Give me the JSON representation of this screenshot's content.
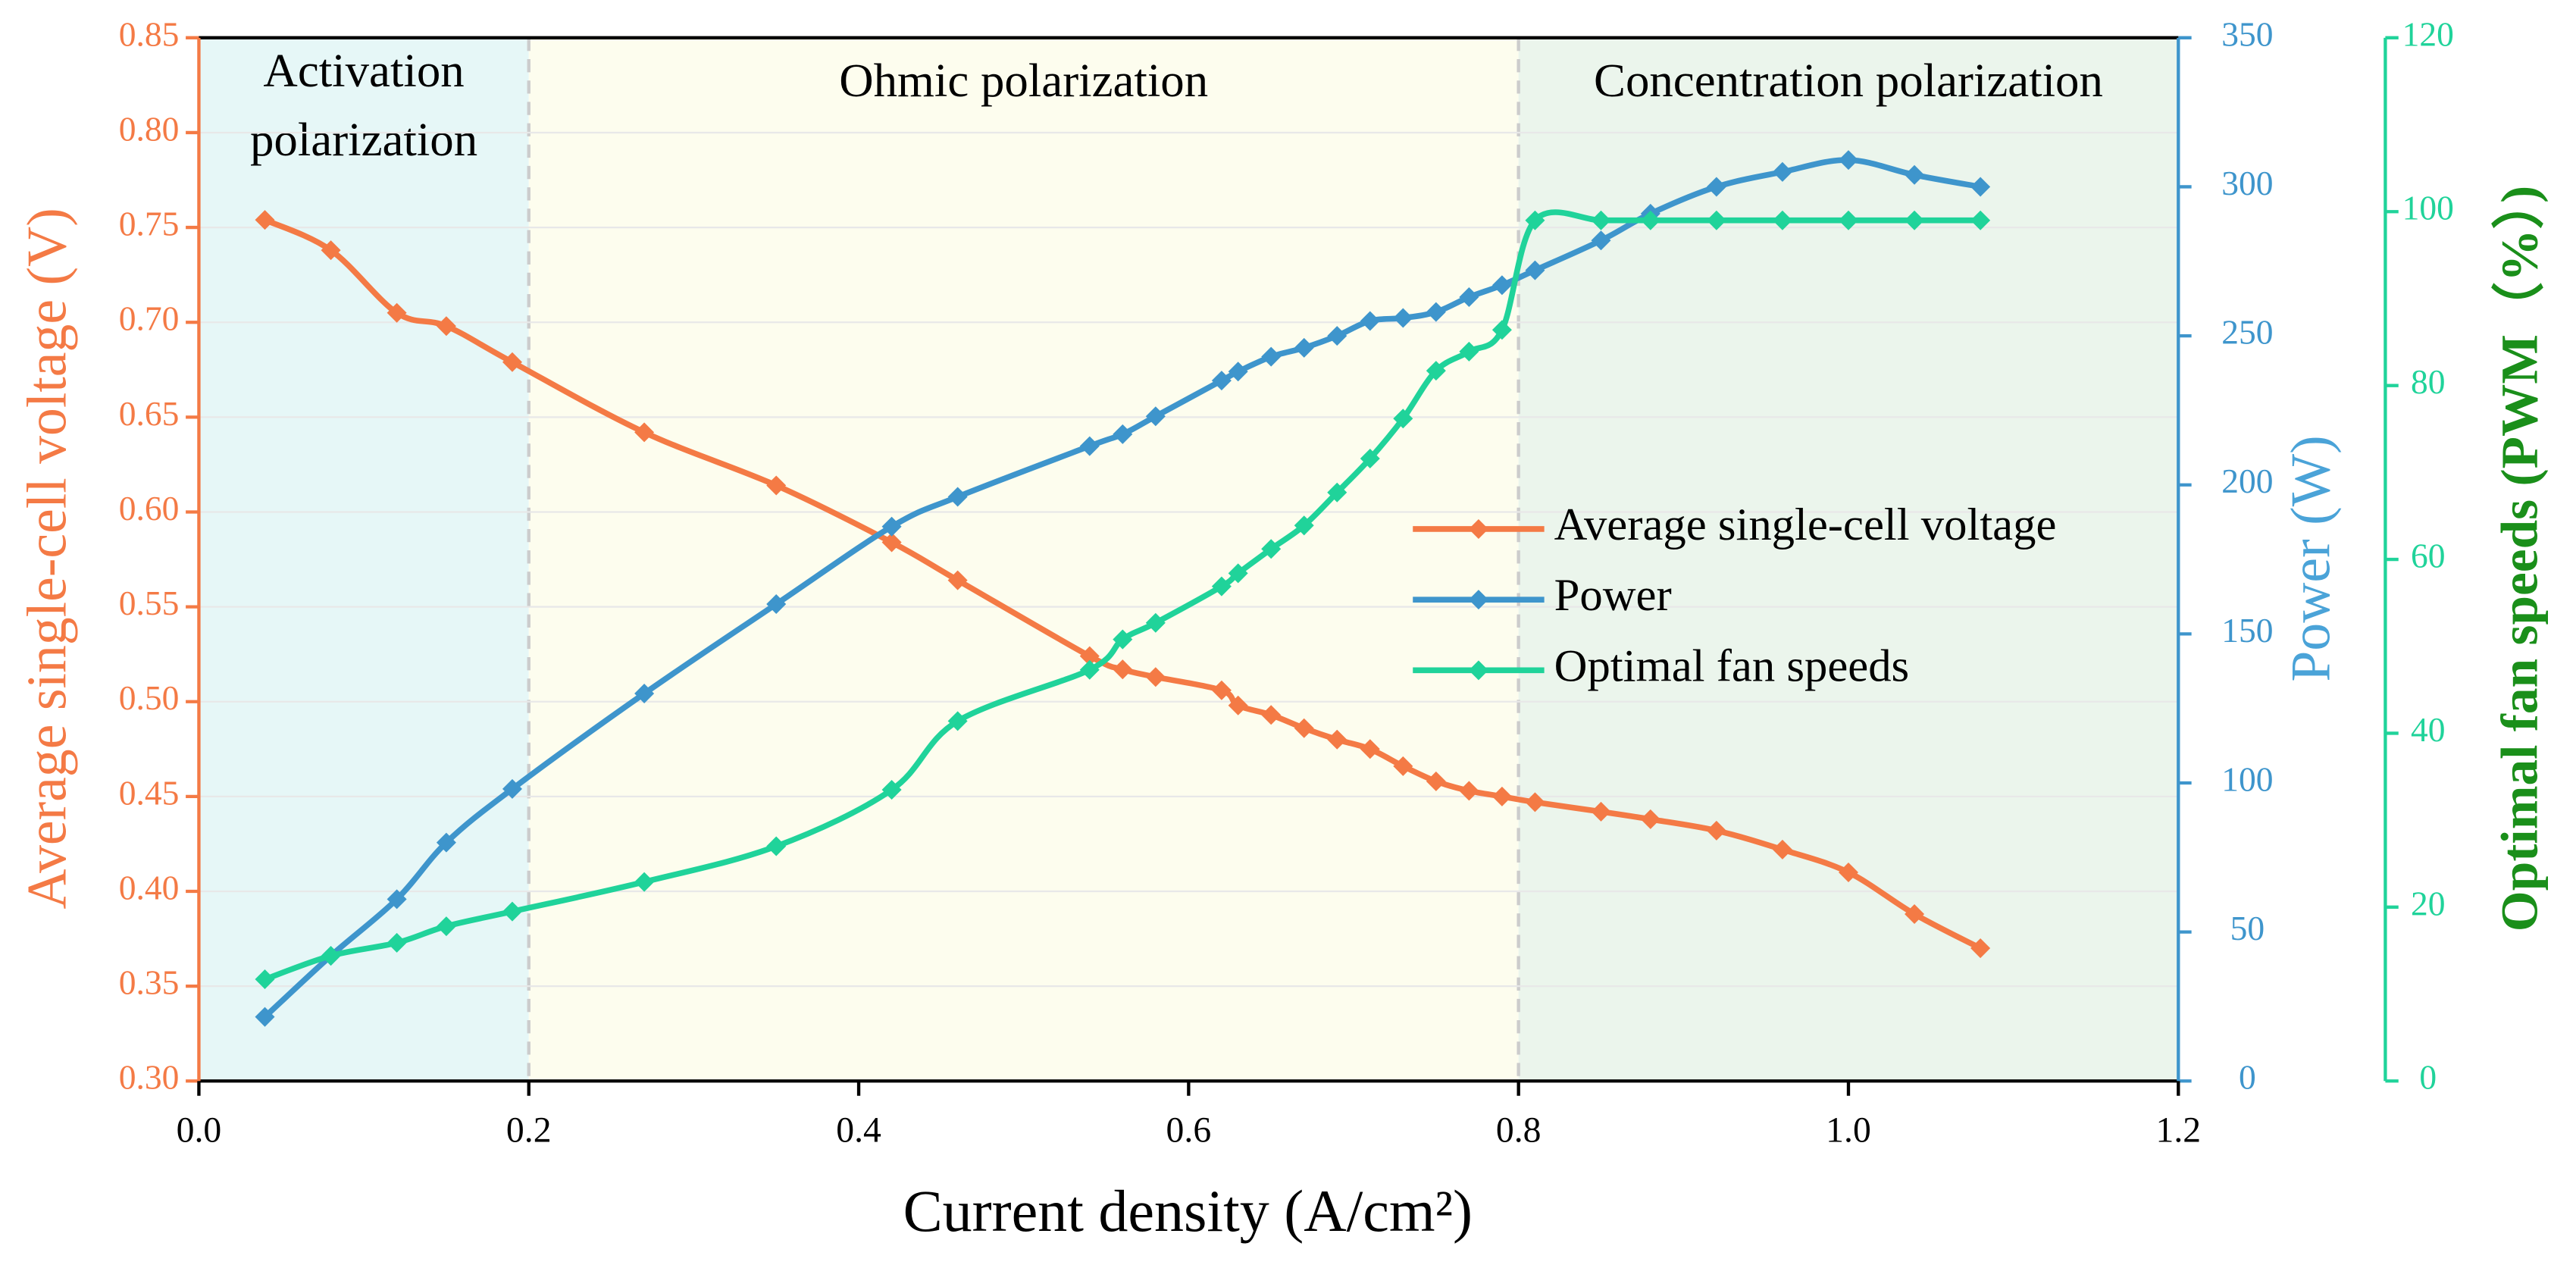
{
  "chart_data": {
    "type": "line",
    "xlabel": "Current density (A/cm²)",
    "ylabel": "Average single-cell voltage (V)",
    "y2label": "Power (W)",
    "y3label": "Optimal fan speeds (PWM（%）)",
    "xlim": [
      0,
      1.2
    ],
    "xticks": [
      {
        "value": 0,
        "label": "0.0"
      },
      0.2,
      0.4,
      0.6,
      0.8,
      {
        "value": 1,
        "label": "1.0"
      },
      1.2
    ],
    "ylim": [
      0.3,
      0.85
    ],
    "yticks": [
      {
        "value": 0.3,
        "label": "0.30"
      },
      0.35,
      {
        "value": 0.4,
        "label": "0.40"
      },
      0.45,
      {
        "value": 0.5,
        "label": "0.50"
      },
      0.55,
      {
        "value": 0.6,
        "label": "0.60"
      },
      0.65,
      {
        "value": 0.7,
        "label": "0.70"
      },
      0.75,
      {
        "value": 0.8,
        "label": "0.80"
      },
      0.85
    ],
    "y2lim": [
      0,
      350
    ],
    "y2ticks": [
      0,
      50,
      100,
      150,
      200,
      250,
      300,
      350
    ],
    "y3lim": [
      0,
      120
    ],
    "y3ticks": [
      0,
      20,
      40,
      60,
      80,
      100,
      120
    ],
    "grid": true,
    "legend": "center-right",
    "regions": [
      {
        "label": [
          "Activation",
          "polarization"
        ],
        "range": [
          0,
          0.2
        ],
        "color": "#e6f7f7"
      },
      {
        "label": [
          "Ohmic polarization"
        ],
        "range": [
          0.2,
          0.8
        ],
        "color": "#fdfdee"
      },
      {
        "label": [
          "Concentration polarization"
        ],
        "range": [
          0.8,
          1.2
        ],
        "color": "#ebf5ec"
      }
    ],
    "x": [
      0.04,
      0.08,
      0.12,
      0.15,
      0.19,
      0.27,
      0.35,
      0.42,
      0.46,
      0.54,
      0.56,
      0.58,
      0.62,
      0.63,
      0.65,
      0.67,
      0.69,
      0.71,
      0.73,
      0.75,
      0.77,
      0.79,
      0.81,
      0.85,
      0.88,
      0.92,
      0.96,
      1.0,
      1.04,
      1.08
    ],
    "series": [
      {
        "name": "Average single-cell voltage",
        "color": "#f47a45",
        "axis": "y",
        "values": [
          0.754,
          0.738,
          0.705,
          0.698,
          0.679,
          0.642,
          0.614,
          0.584,
          0.564,
          0.524,
          0.517,
          0.513,
          0.506,
          0.498,
          0.493,
          0.486,
          0.48,
          0.475,
          0.466,
          0.458,
          0.453,
          0.45,
          0.447,
          0.442,
          0.438,
          0.432,
          0.422,
          0.41,
          0.388,
          0.37
        ]
      },
      {
        "name": "Power",
        "color": "#3e95cc",
        "axis": "y2",
        "values": [
          21.5,
          42,
          61,
          80,
          98,
          130,
          160,
          186,
          196,
          213,
          217,
          223,
          235,
          238,
          243,
          246,
          250,
          255,
          256,
          258,
          263,
          267,
          272,
          282,
          291,
          300,
          305,
          309,
          304,
          300
        ]
      },
      {
        "name": "Optimal fan speeds",
        "color": "#20d39a",
        "axis": "y3",
        "values": [
          11.7,
          14.4,
          15.9,
          17.8,
          19.5,
          22.9,
          27,
          33.5,
          41.4,
          47.3,
          50.8,
          52.7,
          56.9,
          58.4,
          61.2,
          63.9,
          67.7,
          71.6,
          76.2,
          81.7,
          83.9,
          86.4,
          99,
          99,
          99,
          99,
          99,
          99,
          99,
          99
        ]
      }
    ],
    "axis_colors": {
      "y": "#f47a45",
      "y2": "#3e95cc",
      "y3": "#20d39a"
    },
    "label_colors": {
      "y": "#f47a45",
      "y2": "#4aa3d8",
      "y3": "#1a8f1a"
    }
  }
}
